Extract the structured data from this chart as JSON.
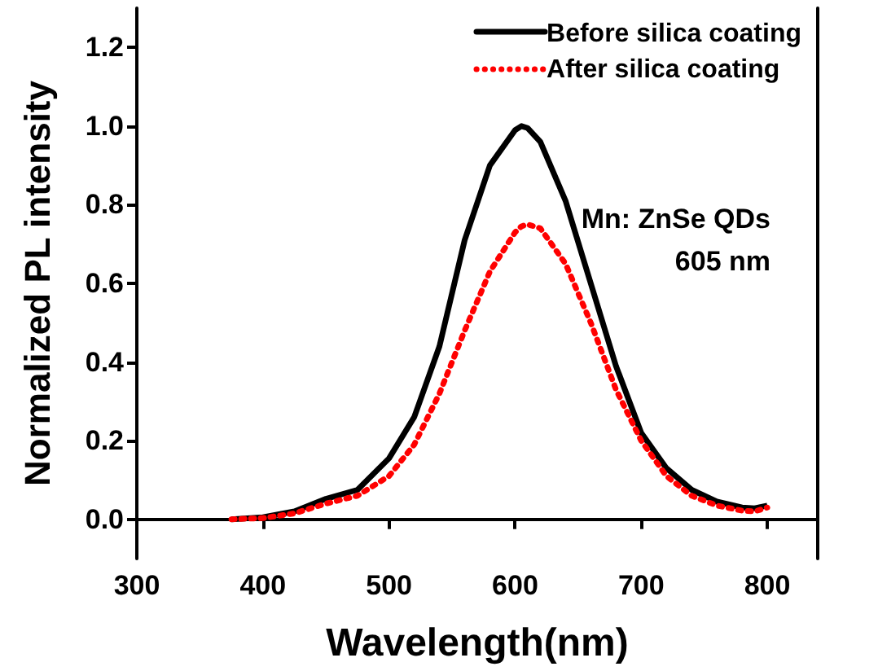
{
  "chart_data": {
    "type": "line",
    "xlabel": "Wavelength(nm)",
    "ylabel": "Normalized PL intensity",
    "annotations": [
      "Mn: ZnSe QDs",
      "605 nm"
    ],
    "xlim": [
      300,
      840
    ],
    "xticks": [
      300,
      400,
      500,
      600,
      700,
      800
    ],
    "ylim": [
      -0.1,
      1.3
    ],
    "yticks": [
      {
        "value": 0,
        "label": "0.0"
      },
      {
        "value": 0.2,
        "label": "0.2"
      },
      {
        "value": 0.4,
        "label": "0.4"
      },
      {
        "value": 0.6,
        "label": "0.6"
      },
      {
        "value": 0.8,
        "label": "0.8"
      },
      {
        "value": 1,
        "label": "1.0"
      },
      {
        "value": 1.2,
        "label": "1.2"
      }
    ],
    "x": [
      375,
      400,
      425,
      450,
      475,
      500,
      520,
      540,
      560,
      580,
      600,
      605,
      610,
      620,
      640,
      660,
      680,
      700,
      720,
      740,
      760,
      780,
      790,
      800
    ],
    "series": [
      {
        "name": "Before silica coating",
        "color": "#000000",
        "line_style": "solid",
        "values": [
          0,
          0.005,
          0.02,
          0.052,
          0.075,
          0.155,
          0.26,
          0.44,
          0.71,
          0.9,
          0.99,
          1.0,
          0.995,
          0.96,
          0.81,
          0.6,
          0.39,
          0.22,
          0.13,
          0.075,
          0.045,
          0.03,
          0.028,
          0.035
        ]
      },
      {
        "name": "After silica coating",
        "color": "#ff0000",
        "line_style": "dotted",
        "values": [
          0,
          0.003,
          0.015,
          0.04,
          0.06,
          0.11,
          0.19,
          0.32,
          0.48,
          0.63,
          0.73,
          0.745,
          0.75,
          0.74,
          0.65,
          0.5,
          0.33,
          0.2,
          0.11,
          0.06,
          0.035,
          0.022,
          0.02,
          0.03
        ]
      }
    ],
    "grid": false,
    "legend": "top right",
    "marker": "none"
  }
}
